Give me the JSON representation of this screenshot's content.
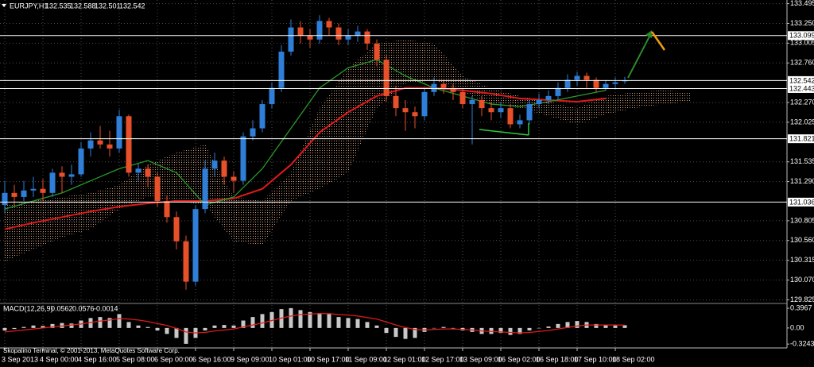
{
  "header": {
    "symbol": "EURJPY,H1",
    "quote": [
      132.535,
      132.588,
      132.501,
      132.542
    ]
  },
  "footer": "Skopalino Terminal, © 2001-2013, MetaQuotes Software Corp.",
  "chart_data": [
    {
      "type": "candlestick",
      "categories": [
        "3 Sep 2013",
        null,
        null,
        null,
        "4 Sep 00:00",
        null,
        null,
        null,
        "4 Sep 16:00",
        null,
        null,
        null,
        "5 Sep 08:00",
        null,
        null,
        null,
        "6 Sep 00:00",
        null,
        null,
        null,
        "6 Sep 16:00",
        null,
        null,
        null,
        "9 Sep 09:00",
        null,
        null,
        null,
        "10 Sep 01:00",
        null,
        null,
        null,
        "10 Sep 17:00",
        null,
        null,
        null,
        "11 Sep 09:00",
        null,
        null,
        null,
        "12 Sep 01:00",
        null,
        null,
        null,
        "12 Sep 17:00",
        null,
        null,
        null,
        "13 Sep 09:00",
        null,
        null,
        null,
        "16 Sep 02:00",
        null,
        null,
        null,
        "16 Sep 18:00",
        null,
        null,
        null,
        "17 Sep 10:00",
        null,
        null,
        null,
        "18 Sep 02:00",
        null
      ],
      "ohlc": [
        [
          131.0,
          131.3,
          130.9,
          131.15
        ],
        [
          131.15,
          131.25,
          131.0,
          131.1
        ],
        [
          131.1,
          131.3,
          131.05,
          131.18
        ],
        [
          131.18,
          131.35,
          131.1,
          131.2
        ],
        [
          131.2,
          131.32,
          131.05,
          131.15
        ],
        [
          131.15,
          131.45,
          131.1,
          131.4
        ],
        [
          131.4,
          131.48,
          131.15,
          131.35
        ],
        [
          131.35,
          131.5,
          131.25,
          131.38
        ],
        [
          131.38,
          131.78,
          131.35,
          131.7
        ],
        [
          131.7,
          131.9,
          131.6,
          131.8
        ],
        [
          131.8,
          131.98,
          131.7,
          131.75
        ],
        [
          131.75,
          131.92,
          131.6,
          131.7
        ],
        [
          131.7,
          132.18,
          131.65,
          132.1
        ],
        [
          132.1,
          132.12,
          131.35,
          131.4
        ],
        [
          131.4,
          131.52,
          131.3,
          131.45
        ],
        [
          131.45,
          131.5,
          131.22,
          131.35
        ],
        [
          131.35,
          131.4,
          130.98,
          131.05
        ],
        [
          131.05,
          131.12,
          130.78,
          130.85
        ],
        [
          130.85,
          130.92,
          130.45,
          130.55
        ],
        [
          130.55,
          130.62,
          129.95,
          130.05
        ],
        [
          130.05,
          131.0,
          130.0,
          130.95
        ],
        [
          130.95,
          131.55,
          130.9,
          131.45
        ],
        [
          131.45,
          131.65,
          131.35,
          131.55
        ],
        [
          131.55,
          131.6,
          131.25,
          131.35
        ],
        [
          131.35,
          131.42,
          131.15,
          131.3
        ],
        [
          131.3,
          131.9,
          131.25,
          131.85
        ],
        [
          131.85,
          132.05,
          131.8,
          131.95
        ],
        [
          131.95,
          132.3,
          131.9,
          132.25
        ],
        [
          132.25,
          132.52,
          132.2,
          132.45
        ],
        [
          132.45,
          132.98,
          132.4,
          132.9
        ],
        [
          132.9,
          133.3,
          132.85,
          133.2
        ],
        [
          133.2,
          133.28,
          133.0,
          133.1
        ],
        [
          133.1,
          133.18,
          132.95,
          133.05
        ],
        [
          133.05,
          133.35,
          133.0,
          133.28
        ],
        [
          133.28,
          133.32,
          133.1,
          133.2
        ],
        [
          133.2,
          133.25,
          132.98,
          133.05
        ],
        [
          133.05,
          133.18,
          132.98,
          133.1
        ],
        [
          133.1,
          133.22,
          133.02,
          133.15
        ],
        [
          133.15,
          133.18,
          132.92,
          133.0
        ],
        [
          133.0,
          133.05,
          132.72,
          132.8
        ],
        [
          132.8,
          132.85,
          132.28,
          132.35
        ],
        [
          132.35,
          132.48,
          132.1,
          132.2
        ],
        [
          132.2,
          132.3,
          131.92,
          132.15
        ],
        [
          132.15,
          132.22,
          131.95,
          132.1
        ],
        [
          132.1,
          132.45,
          132.05,
          132.4
        ],
        [
          132.4,
          132.58,
          132.35,
          132.5
        ],
        [
          132.5,
          132.55,
          132.38,
          132.45
        ],
        [
          132.45,
          132.5,
          132.3,
          132.4
        ],
        [
          132.4,
          132.45,
          132.2,
          132.25
        ],
        [
          132.25,
          132.35,
          131.75,
          132.3
        ],
        [
          132.3,
          132.35,
          132.1,
          132.2
        ],
        [
          132.2,
          132.28,
          132.05,
          132.15
        ],
        [
          132.15,
          132.28,
          132.08,
          132.2
        ],
        [
          132.2,
          132.25,
          131.95,
          132.0
        ],
        [
          132.0,
          132.12,
          131.95,
          132.05
        ],
        [
          132.05,
          132.3,
          132.0,
          132.25
        ],
        [
          132.25,
          132.38,
          132.2,
          132.3
        ],
        [
          132.3,
          132.42,
          132.25,
          132.35
        ],
        [
          132.35,
          132.52,
          132.3,
          132.45
        ],
        [
          132.45,
          132.62,
          132.4,
          132.55
        ],
        [
          132.55,
          132.65,
          132.48,
          132.6
        ],
        [
          132.6,
          132.64,
          132.45,
          132.55
        ],
        [
          132.55,
          132.58,
          132.4,
          132.45
        ],
        [
          132.45,
          132.55,
          132.42,
          132.5
        ],
        [
          132.5,
          132.58,
          132.45,
          132.52
        ],
        [
          132.535,
          132.588,
          132.501,
          132.542
        ]
      ],
      "up_color": "#2f7fd8",
      "down_color": "#e8502a",
      "ylim": [
        129.79,
        133.54
      ],
      "yticks": [
        {
          "value": 133.495,
          "label": "133.495"
        },
        {
          "value": 133.25,
          "label": "133.250"
        },
        {
          "value": 133.005,
          "label": "133.005"
        },
        {
          "value": 132.76,
          "label": "132.760"
        },
        {
          "value": 132.27,
          "label": "132.270"
        },
        {
          "value": 132.025,
          "label": "132.025"
        },
        {
          "value": 131.535,
          "label": "131.535"
        },
        {
          "value": 131.29,
          "label": "131.290"
        },
        {
          "value": 130.805,
          "label": "130.805"
        },
        {
          "value": 130.56,
          "label": "130.560"
        },
        {
          "value": 130.315,
          "label": "130.315"
        },
        {
          "value": 130.07,
          "label": "130.070"
        },
        {
          "value": 129.825,
          "label": "129.825"
        }
      ],
      "grid": true,
      "levels": [
        133.099,
        132.542,
        132.443,
        131.821,
        131.036
      ],
      "moving_averages": [
        {
          "color": "#e01a1a",
          "values": [
            130.7,
            130.78,
            130.85,
            130.92,
            130.98,
            131.02,
            131.05,
            131.05,
            131.08,
            131.2,
            131.5,
            131.9,
            132.15,
            132.35,
            132.45,
            132.45,
            132.42,
            132.38,
            132.32,
            132.3,
            132.28,
            132.32
          ]
        },
        {
          "color": "#2a9a2a",
          "values": [
            130.95,
            131.05,
            131.15,
            131.3,
            131.45,
            131.55,
            131.4,
            131.0,
            131.1,
            131.45,
            131.95,
            132.45,
            132.7,
            132.8,
            132.6,
            132.45,
            132.35,
            132.25,
            132.22,
            132.28,
            132.35,
            132.42
          ]
        }
      ],
      "cloud": {
        "color": "#e3a883",
        "span_a": [
          131.0,
          131.05,
          131.1,
          131.15,
          131.25,
          131.5,
          131.65,
          131.75,
          131.1,
          131.05,
          131.4,
          132.2,
          132.7,
          133.0,
          133.05,
          133.0,
          132.6,
          132.45,
          132.35,
          132.28,
          132.2,
          132.35,
          132.4,
          132.42,
          132.4
        ],
        "span_b": [
          130.3,
          130.45,
          130.6,
          130.7,
          130.95,
          131.1,
          131.05,
          131.0,
          130.55,
          130.5,
          131.05,
          131.2,
          131.4,
          132.2,
          132.5,
          132.55,
          132.4,
          132.25,
          132.2,
          132.1,
          132.0,
          132.12,
          132.2,
          132.25,
          132.28
        ]
      }
    },
    {
      "type": "histogram",
      "label": "MACD(12,26,9)",
      "legend_values": [
        0.0562,
        0.0576,
        -0.0014
      ],
      "values": [
        -0.05,
        -0.02,
        0.02,
        0.05,
        0.04,
        0.08,
        0.1,
        0.09,
        0.15,
        0.2,
        0.22,
        0.2,
        0.28,
        0.12,
        0.05,
        0.02,
        -0.05,
        -0.12,
        -0.2,
        -0.32,
        -0.2,
        -0.05,
        0.05,
        0.06,
        0.05,
        0.15,
        0.22,
        0.28,
        0.32,
        0.38,
        0.4,
        0.36,
        0.32,
        0.3,
        0.28,
        0.22,
        0.2,
        0.18,
        0.12,
        0.05,
        -0.1,
        -0.18,
        -0.22,
        -0.2,
        -0.08,
        0.0,
        0.02,
        0.0,
        -0.05,
        -0.08,
        -0.12,
        -0.12,
        -0.1,
        -0.14,
        -0.12,
        -0.05,
        0.0,
        0.03,
        0.08,
        0.12,
        0.14,
        0.12,
        0.08,
        0.06,
        0.05,
        0.0562
      ],
      "signal": [
        -0.08,
        -0.06,
        -0.04,
        -0.02,
        0.0,
        0.02,
        0.04,
        0.06,
        0.08,
        0.11,
        0.14,
        0.16,
        0.19,
        0.18,
        0.16,
        0.13,
        0.09,
        0.05,
        -0.01,
        -0.08,
        -0.1,
        -0.09,
        -0.06,
        -0.04,
        -0.02,
        0.02,
        0.06,
        0.1,
        0.15,
        0.2,
        0.24,
        0.27,
        0.28,
        0.29,
        0.29,
        0.27,
        0.26,
        0.24,
        0.21,
        0.18,
        0.12,
        0.06,
        0.01,
        -0.03,
        -0.04,
        -0.03,
        -0.02,
        -0.02,
        -0.03,
        -0.04,
        -0.06,
        -0.07,
        -0.08,
        -0.09,
        -0.1,
        -0.09,
        -0.07,
        -0.05,
        -0.02,
        0.01,
        0.04,
        0.06,
        0.06,
        0.06,
        0.06,
        0.0576
      ],
      "color": "#c8c8c8",
      "signal_color": "#e01a1a",
      "ylim": [
        -0.37,
        0.43
      ],
      "yticks": [
        0.3967,
        {
          "value": 0,
          "label": "0.00"
        },
        -0.3243
      ]
    }
  ]
}
